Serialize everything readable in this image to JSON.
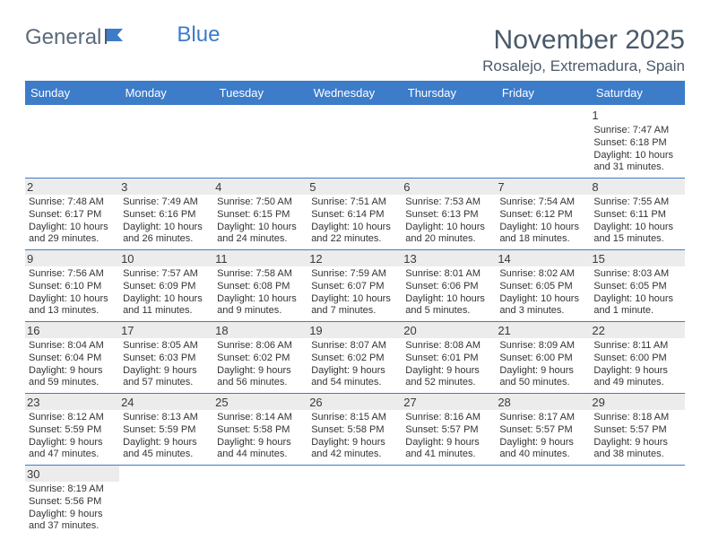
{
  "logo": {
    "part1": "General",
    "part2": "Blue"
  },
  "title": "November 2025",
  "location": "Rosalejo, Extremadura, Spain",
  "colors": {
    "header_bg": "#3d7cc9",
    "header_text": "#ffffff",
    "text": "#333333",
    "daynum_bg": "#ececec",
    "border": "#3d7cc9"
  },
  "fonts": {
    "title_size": 30,
    "location_size": 17,
    "dayheader_size": 13,
    "daynum_size": 13,
    "info_size": 11
  },
  "dayHeaders": [
    "Sunday",
    "Monday",
    "Tuesday",
    "Wednesday",
    "Thursday",
    "Friday",
    "Saturday"
  ],
  "weeks": [
    [
      null,
      null,
      null,
      null,
      null,
      null,
      {
        "n": "1",
        "sr": "Sunrise: 7:47 AM",
        "ss": "Sunset: 6:18 PM",
        "dl": "Daylight: 10 hours and 31 minutes."
      }
    ],
    [
      {
        "n": "2",
        "sr": "Sunrise: 7:48 AM",
        "ss": "Sunset: 6:17 PM",
        "dl": "Daylight: 10 hours and 29 minutes."
      },
      {
        "n": "3",
        "sr": "Sunrise: 7:49 AM",
        "ss": "Sunset: 6:16 PM",
        "dl": "Daylight: 10 hours and 26 minutes."
      },
      {
        "n": "4",
        "sr": "Sunrise: 7:50 AM",
        "ss": "Sunset: 6:15 PM",
        "dl": "Daylight: 10 hours and 24 minutes."
      },
      {
        "n": "5",
        "sr": "Sunrise: 7:51 AM",
        "ss": "Sunset: 6:14 PM",
        "dl": "Daylight: 10 hours and 22 minutes."
      },
      {
        "n": "6",
        "sr": "Sunrise: 7:53 AM",
        "ss": "Sunset: 6:13 PM",
        "dl": "Daylight: 10 hours and 20 minutes."
      },
      {
        "n": "7",
        "sr": "Sunrise: 7:54 AM",
        "ss": "Sunset: 6:12 PM",
        "dl": "Daylight: 10 hours and 18 minutes."
      },
      {
        "n": "8",
        "sr": "Sunrise: 7:55 AM",
        "ss": "Sunset: 6:11 PM",
        "dl": "Daylight: 10 hours and 15 minutes."
      }
    ],
    [
      {
        "n": "9",
        "sr": "Sunrise: 7:56 AM",
        "ss": "Sunset: 6:10 PM",
        "dl": "Daylight: 10 hours and 13 minutes."
      },
      {
        "n": "10",
        "sr": "Sunrise: 7:57 AM",
        "ss": "Sunset: 6:09 PM",
        "dl": "Daylight: 10 hours and 11 minutes."
      },
      {
        "n": "11",
        "sr": "Sunrise: 7:58 AM",
        "ss": "Sunset: 6:08 PM",
        "dl": "Daylight: 10 hours and 9 minutes."
      },
      {
        "n": "12",
        "sr": "Sunrise: 7:59 AM",
        "ss": "Sunset: 6:07 PM",
        "dl": "Daylight: 10 hours and 7 minutes."
      },
      {
        "n": "13",
        "sr": "Sunrise: 8:01 AM",
        "ss": "Sunset: 6:06 PM",
        "dl": "Daylight: 10 hours and 5 minutes."
      },
      {
        "n": "14",
        "sr": "Sunrise: 8:02 AM",
        "ss": "Sunset: 6:05 PM",
        "dl": "Daylight: 10 hours and 3 minutes."
      },
      {
        "n": "15",
        "sr": "Sunrise: 8:03 AM",
        "ss": "Sunset: 6:05 PM",
        "dl": "Daylight: 10 hours and 1 minute."
      }
    ],
    [
      {
        "n": "16",
        "sr": "Sunrise: 8:04 AM",
        "ss": "Sunset: 6:04 PM",
        "dl": "Daylight: 9 hours and 59 minutes."
      },
      {
        "n": "17",
        "sr": "Sunrise: 8:05 AM",
        "ss": "Sunset: 6:03 PM",
        "dl": "Daylight: 9 hours and 57 minutes."
      },
      {
        "n": "18",
        "sr": "Sunrise: 8:06 AM",
        "ss": "Sunset: 6:02 PM",
        "dl": "Daylight: 9 hours and 56 minutes."
      },
      {
        "n": "19",
        "sr": "Sunrise: 8:07 AM",
        "ss": "Sunset: 6:02 PM",
        "dl": "Daylight: 9 hours and 54 minutes."
      },
      {
        "n": "20",
        "sr": "Sunrise: 8:08 AM",
        "ss": "Sunset: 6:01 PM",
        "dl": "Daylight: 9 hours and 52 minutes."
      },
      {
        "n": "21",
        "sr": "Sunrise: 8:09 AM",
        "ss": "Sunset: 6:00 PM",
        "dl": "Daylight: 9 hours and 50 minutes."
      },
      {
        "n": "22",
        "sr": "Sunrise: 8:11 AM",
        "ss": "Sunset: 6:00 PM",
        "dl": "Daylight: 9 hours and 49 minutes."
      }
    ],
    [
      {
        "n": "23",
        "sr": "Sunrise: 8:12 AM",
        "ss": "Sunset: 5:59 PM",
        "dl": "Daylight: 9 hours and 47 minutes."
      },
      {
        "n": "24",
        "sr": "Sunrise: 8:13 AM",
        "ss": "Sunset: 5:59 PM",
        "dl": "Daylight: 9 hours and 45 minutes."
      },
      {
        "n": "25",
        "sr": "Sunrise: 8:14 AM",
        "ss": "Sunset: 5:58 PM",
        "dl": "Daylight: 9 hours and 44 minutes."
      },
      {
        "n": "26",
        "sr": "Sunrise: 8:15 AM",
        "ss": "Sunset: 5:58 PM",
        "dl": "Daylight: 9 hours and 42 minutes."
      },
      {
        "n": "27",
        "sr": "Sunrise: 8:16 AM",
        "ss": "Sunset: 5:57 PM",
        "dl": "Daylight: 9 hours and 41 minutes."
      },
      {
        "n": "28",
        "sr": "Sunrise: 8:17 AM",
        "ss": "Sunset: 5:57 PM",
        "dl": "Daylight: 9 hours and 40 minutes."
      },
      {
        "n": "29",
        "sr": "Sunrise: 8:18 AM",
        "ss": "Sunset: 5:57 PM",
        "dl": "Daylight: 9 hours and 38 minutes."
      }
    ],
    [
      {
        "n": "30",
        "sr": "Sunrise: 8:19 AM",
        "ss": "Sunset: 5:56 PM",
        "dl": "Daylight: 9 hours and 37 minutes."
      },
      null,
      null,
      null,
      null,
      null,
      null
    ]
  ]
}
